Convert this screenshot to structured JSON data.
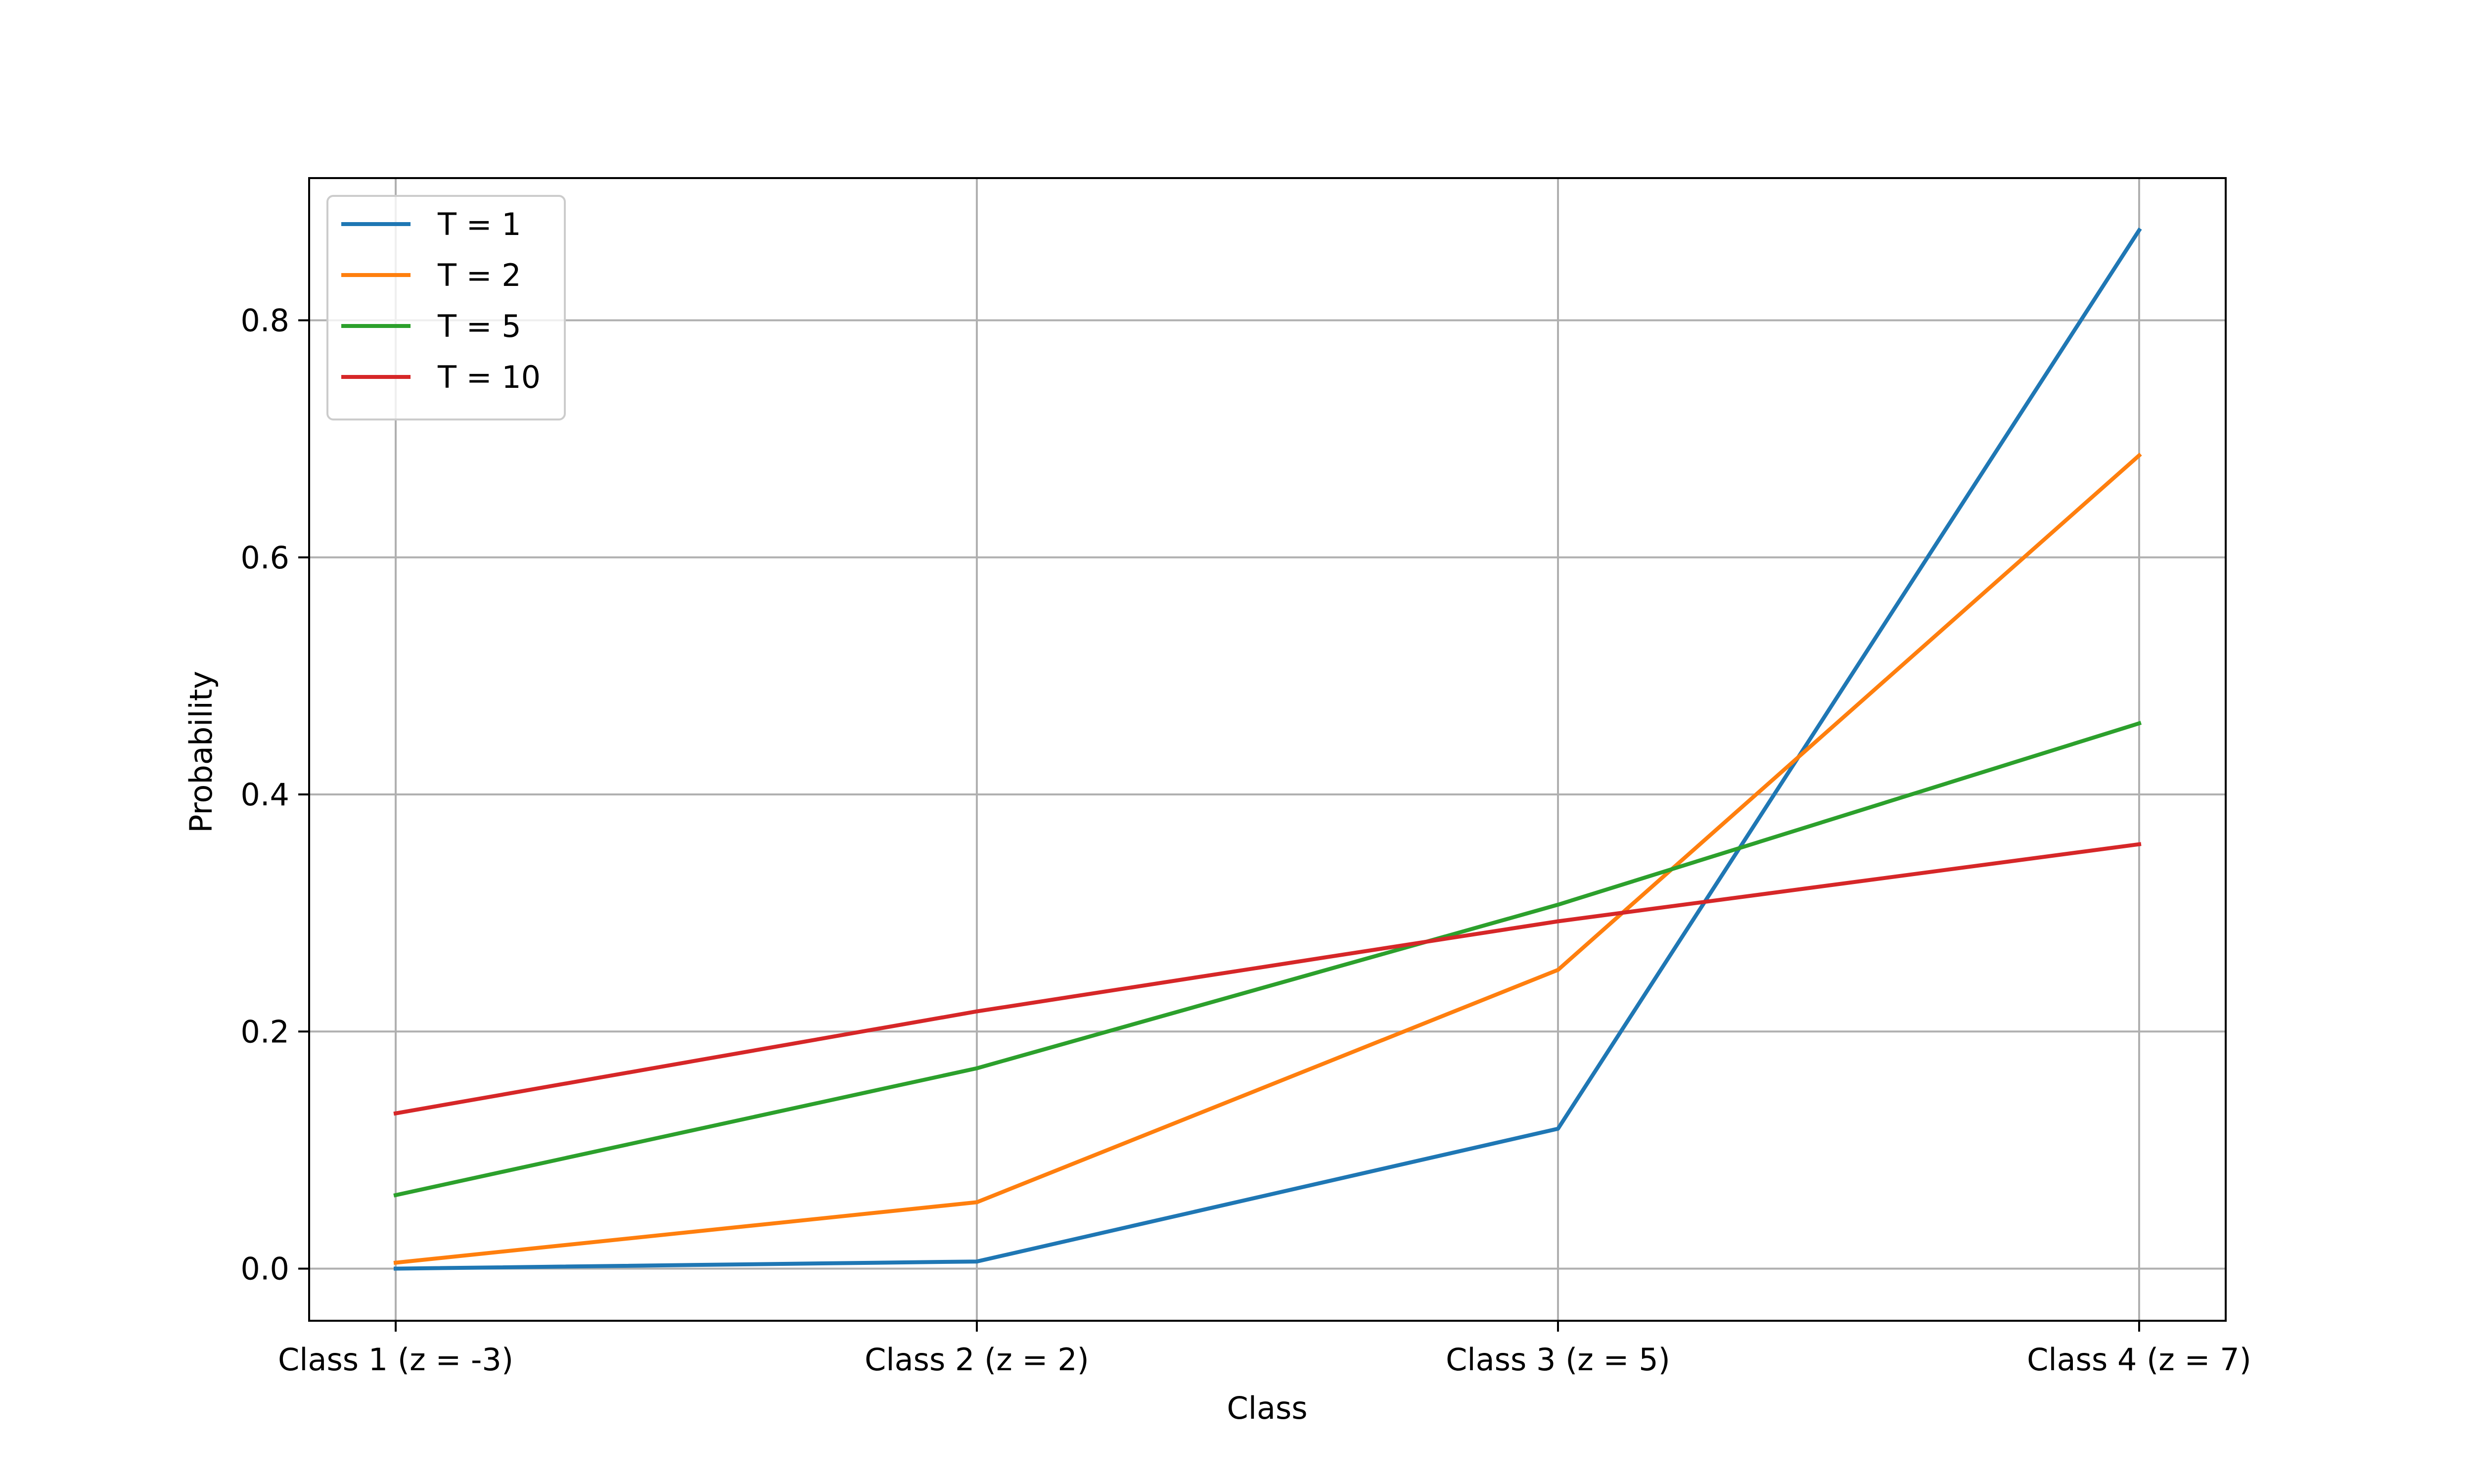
{
  "chart_data": {
    "type": "line",
    "title": "",
    "xlabel": "Class",
    "ylabel": "Probability",
    "categories": [
      "Class 1 (z = -3)",
      "Class 2 (z = 2)",
      "Class 3 (z = 5)",
      "Class 4 (z = 7)"
    ],
    "ylim": [
      -0.044,
      0.92
    ],
    "yticks": [
      0.0,
      0.2,
      0.4,
      0.6,
      0.8
    ],
    "ytick_labels": [
      "0.0",
      "0.2",
      "0.4",
      "0.6",
      "0.8"
    ],
    "grid": true,
    "legend_position": "top-left",
    "series": [
      {
        "name": "T = 1",
        "color": "#1f77b4",
        "values": [
          0.0,
          0.006,
          0.118,
          0.876
        ]
      },
      {
        "name": "T = 2",
        "color": "#ff7f0e",
        "values": [
          0.005,
          0.056,
          0.252,
          0.686
        ]
      },
      {
        "name": "T = 5",
        "color": "#2ca02c",
        "values": [
          0.062,
          0.169,
          0.307,
          0.46
        ]
      },
      {
        "name": "T = 10",
        "color": "#d62728",
        "values": [
          0.131,
          0.217,
          0.293,
          0.358
        ]
      }
    ]
  }
}
